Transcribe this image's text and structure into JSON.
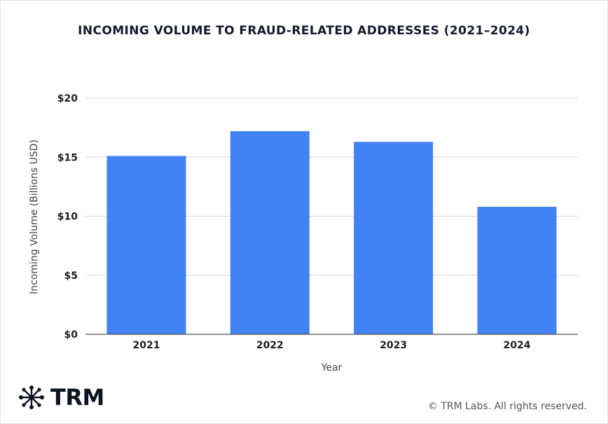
{
  "chart_data": {
    "type": "bar",
    "title": "INCOMING VOLUME TO FRAUD-RELATED ADDRESSES (2021–2024)",
    "xlabel": "Year",
    "ylabel": "Incoming Volume (Billions USD)",
    "categories": [
      "2021",
      "2022",
      "2023",
      "2024"
    ],
    "values": [
      15.1,
      17.2,
      16.3,
      10.8
    ],
    "ylim": [
      0,
      20
    ],
    "yticks": [
      0,
      5,
      10,
      15,
      20
    ],
    "ytick_labels": [
      "$0",
      "$5",
      "$10",
      "$15",
      "$20"
    ],
    "bar_color": "#4183f5",
    "grid": true
  },
  "brand": {
    "logo_text": "TRM",
    "logo_icon": "network-star-icon",
    "logo_color": "#0c1320"
  },
  "footer": {
    "copyright": "© TRM Labs. All rights reserved."
  }
}
